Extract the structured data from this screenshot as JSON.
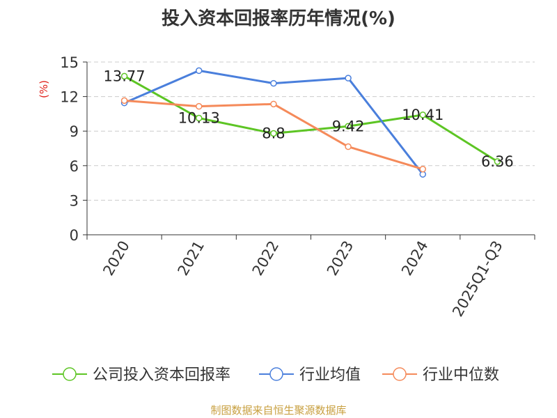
{
  "chart_data": {
    "type": "line",
    "title": "投入资本回报率历年情况(%)",
    "ylabel": "(%)",
    "ylim": [
      0,
      15
    ],
    "yticks": [
      0,
      3,
      6,
      9,
      12,
      15
    ],
    "grid": true,
    "categories": [
      "2020",
      "2021",
      "2022",
      "2023",
      "2024",
      "2025Q1-Q3"
    ],
    "series": [
      {
        "name": "公司投入资本回报率",
        "color": "#5dc524",
        "values": [
          13.77,
          10.13,
          8.8,
          9.42,
          10.41,
          6.36
        ],
        "labels": [
          "13.77",
          "10.13",
          "8.8",
          "9.42",
          "10.41",
          "6.36"
        ]
      },
      {
        "name": "行业均值",
        "color": "#4a7fdc",
        "values": [
          11.45,
          14.25,
          13.15,
          13.6,
          5.25,
          null
        ]
      },
      {
        "name": "行业中位数",
        "color": "#f58a5a",
        "values": [
          11.65,
          11.15,
          11.35,
          7.65,
          5.7,
          null
        ]
      }
    ],
    "legend_position": "bottom"
  },
  "footer": "制图数据来自恒生聚源数据库"
}
